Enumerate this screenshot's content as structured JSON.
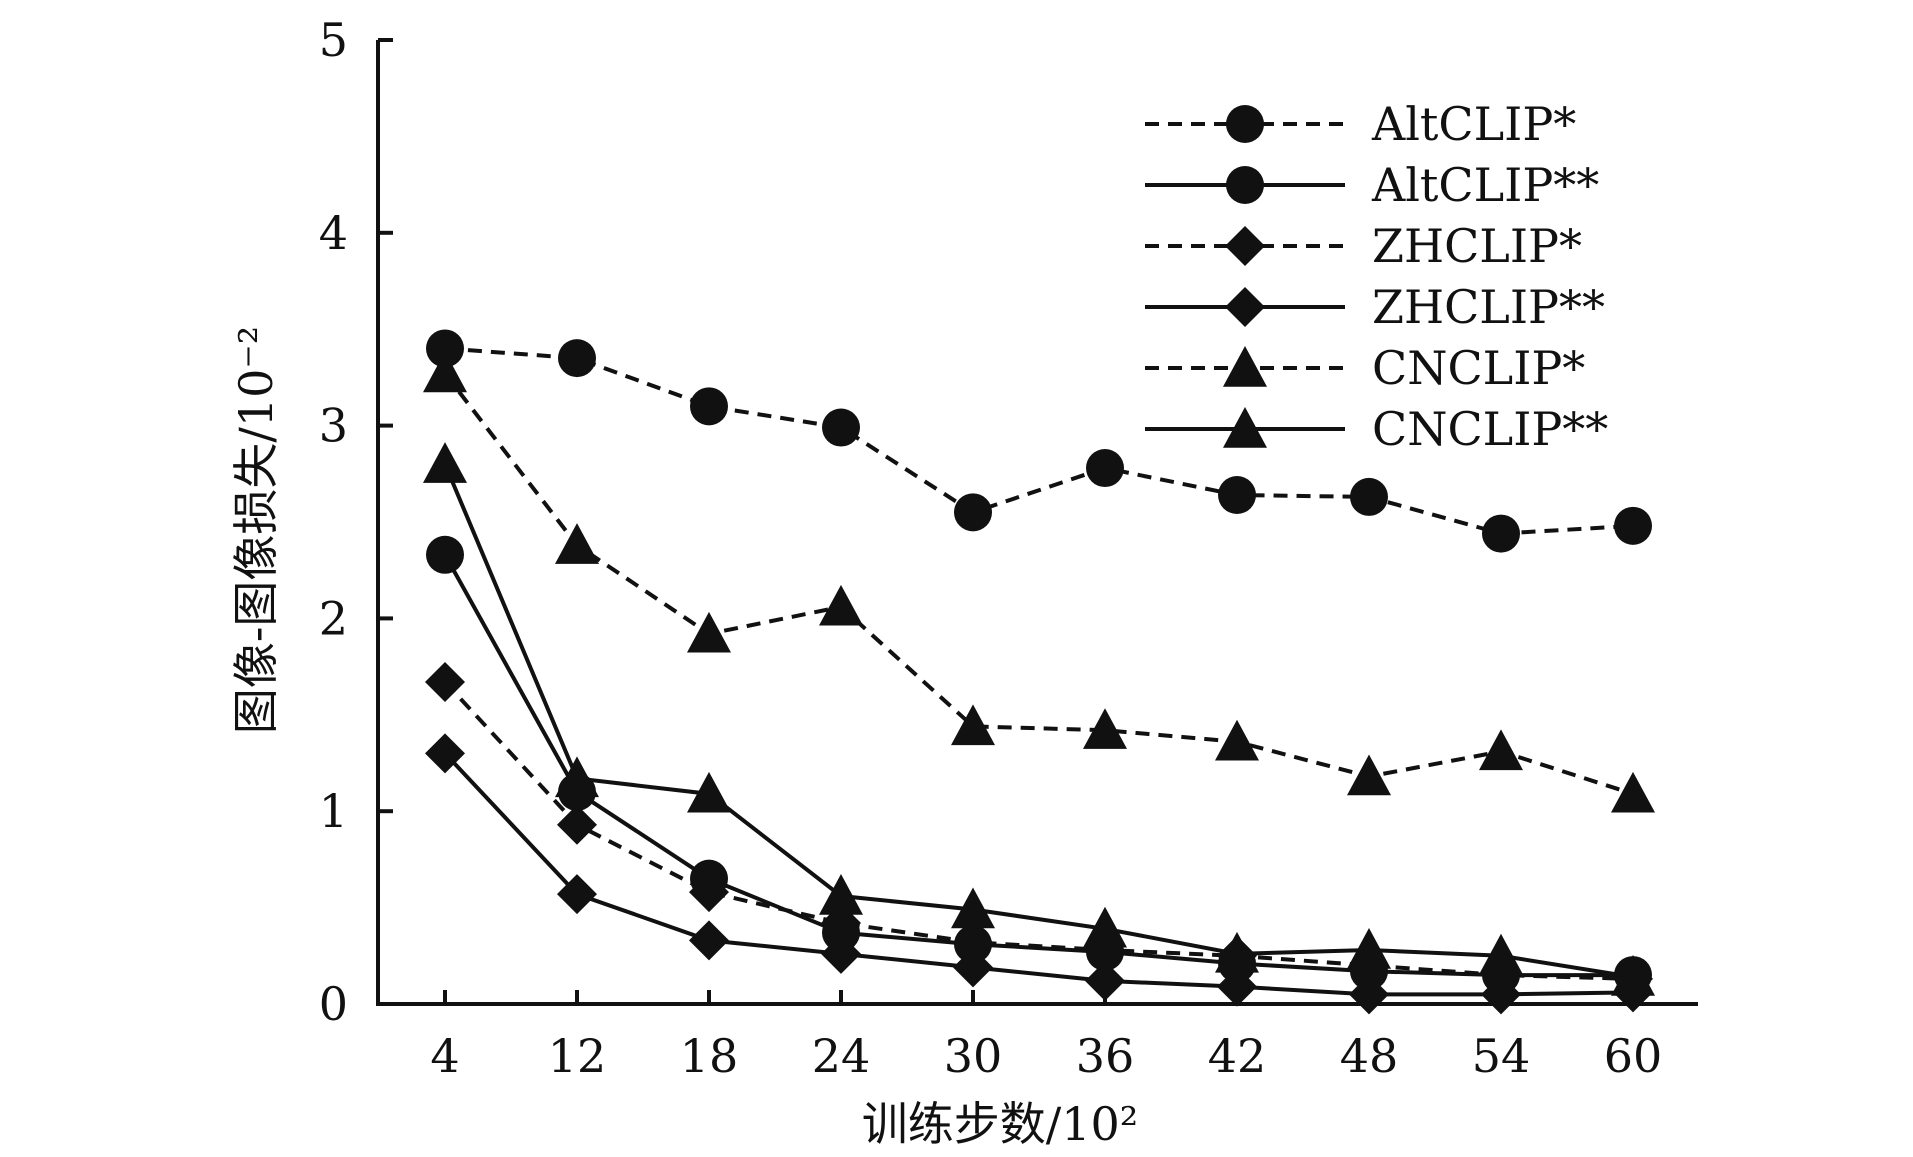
{
  "chart_data": {
    "type": "line",
    "xlabel": "训练步数/10²",
    "ylabel": "图像-图像损失/10⁻²",
    "categories": [
      "4",
      "12",
      "18",
      "24",
      "30",
      "36",
      "42",
      "48",
      "54",
      "60"
    ],
    "yticks": [
      "0",
      "1",
      "2",
      "3",
      "4",
      "5"
    ],
    "ylim": [
      0,
      5
    ],
    "grid": false,
    "legend_position": "top-right",
    "series": [
      {
        "name": "AltCLIP*",
        "marker": "circle",
        "dash": true,
        "values": [
          3.4,
          3.35,
          3.1,
          2.99,
          2.55,
          2.78,
          2.64,
          2.63,
          2.44,
          2.48
        ]
      },
      {
        "name": "AltCLIP**",
        "marker": "circle",
        "dash": false,
        "values": [
          2.33,
          1.1,
          0.65,
          0.37,
          0.31,
          0.27,
          0.21,
          0.17,
          0.15,
          0.15
        ]
      },
      {
        "name": "ZHCLIP*",
        "marker": "diamond",
        "dash": true,
        "values": [
          1.67,
          0.93,
          0.58,
          0.42,
          0.32,
          0.28,
          0.25,
          0.2,
          0.15,
          0.13
        ]
      },
      {
        "name": "ZHCLIP**",
        "marker": "diamond",
        "dash": false,
        "values": [
          1.3,
          0.57,
          0.33,
          0.26,
          0.19,
          0.12,
          0.09,
          0.05,
          0.05,
          0.06
        ]
      },
      {
        "name": "CNCLIP*",
        "marker": "triangle",
        "dash": true,
        "values": [
          3.27,
          2.38,
          1.92,
          2.06,
          1.44,
          1.42,
          1.36,
          1.18,
          1.31,
          1.09
        ]
      },
      {
        "name": "CNCLIP**",
        "marker": "triangle",
        "dash": false,
        "values": [
          2.8,
          1.17,
          1.09,
          0.56,
          0.49,
          0.39,
          0.26,
          0.28,
          0.25,
          0.14
        ]
      }
    ]
  }
}
